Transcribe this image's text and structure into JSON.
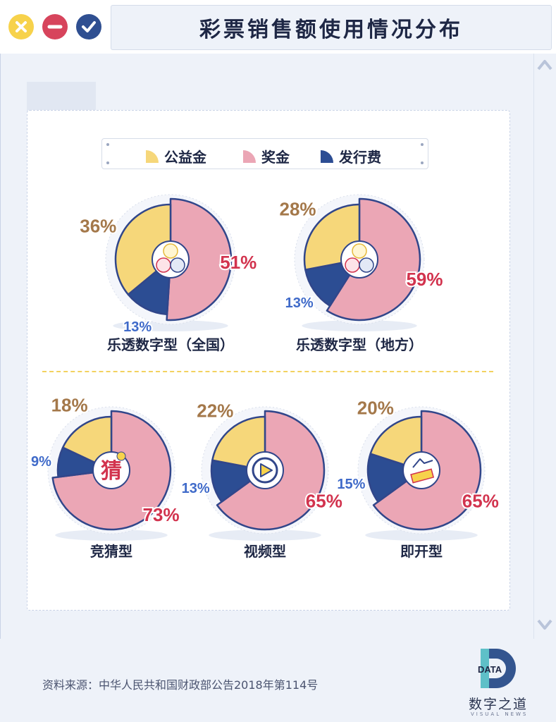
{
  "window": {
    "title": "彩票销售额使用情况分布",
    "buttons": {
      "close": "close",
      "minimize": "minimize",
      "confirm": "confirm"
    }
  },
  "colors": {
    "public_welfare": "#f6d77a",
    "prize": "#eba6b5",
    "issuance_fee": "#2c4d93",
    "public_label": "#a4784a",
    "prize_label": "#d2334e",
    "fee_label": "#3f6ac9"
  },
  "legend": {
    "items": [
      {
        "label": "公益金",
        "color": "#f6d77a"
      },
      {
        "label": "奖金",
        "color": "#eba6b5"
      },
      {
        "label": "发行费",
        "color": "#2c4d93"
      }
    ]
  },
  "chart_data": {
    "type": "pie",
    "categories": [
      "公益金",
      "奖金",
      "发行费"
    ],
    "charts": [
      {
        "title": "乐透数字型（全国）",
        "icon": "lottery-balls-icon",
        "values": [
          36,
          51,
          13
        ],
        "labels": [
          "36%",
          "51%",
          "13%"
        ]
      },
      {
        "title": "乐透数字型（地方）",
        "icon": "lottery-balls-icon",
        "values": [
          28,
          59,
          13
        ],
        "labels": [
          "28%",
          "59%",
          "13%"
        ]
      },
      {
        "title": "竞猜型",
        "icon": "guess-icon",
        "icon_text": "猜",
        "values": [
          18,
          73,
          9
        ],
        "labels": [
          "18%",
          "73%",
          "9%"
        ]
      },
      {
        "title": "视频型",
        "icon": "video-play-icon",
        "values": [
          22,
          65,
          13
        ],
        "labels": [
          "22%",
          "65%",
          "13%"
        ]
      },
      {
        "title": "即开型",
        "icon": "scratch-card-icon",
        "values": [
          20,
          65,
          15
        ],
        "labels": [
          "20%",
          "65%",
          "15%"
        ]
      }
    ]
  },
  "footer": {
    "source": "资料来源：中华人民共和国财政部公告2018年第114号",
    "logo_mark": "DATA",
    "logo_name": "数字之道",
    "logo_sub": "VISUAL NEWS"
  }
}
